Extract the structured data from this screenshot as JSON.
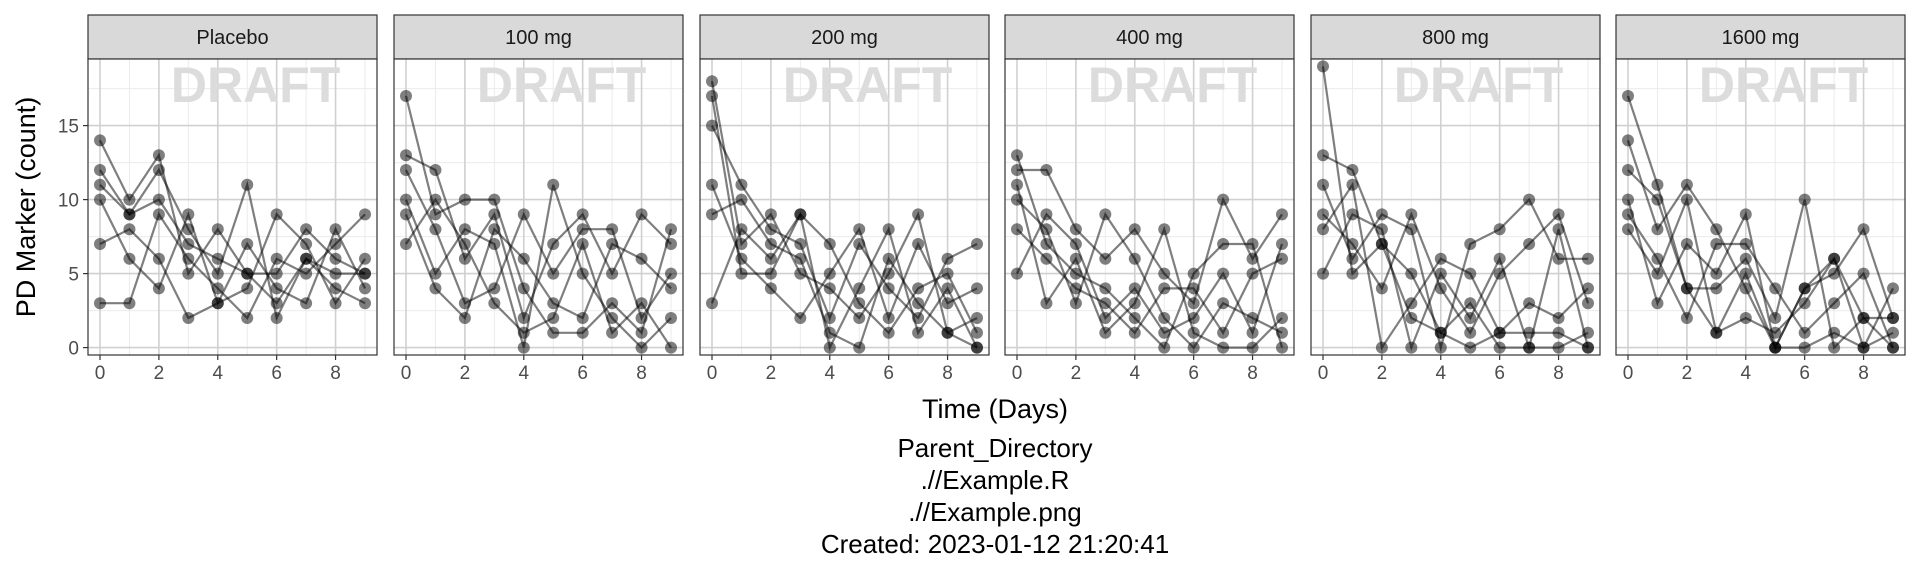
{
  "chart_data": {
    "type": "line",
    "facets": [
      "Placebo",
      "100 mg",
      "200 mg",
      "400 mg",
      "800 mg",
      "1600 mg"
    ],
    "xlabel": "Time (Days)",
    "ylabel": "PD Marker (count)",
    "xlim": [
      0,
      9
    ],
    "ylim": [
      -0.5,
      19.5
    ],
    "xticks": [
      0,
      2,
      4,
      6,
      8
    ],
    "yticks": [
      0,
      5,
      10,
      15
    ],
    "grid": true,
    "watermark": "DRAFT",
    "series": [
      {
        "facet": "Placebo",
        "x": [
          0,
          1,
          2,
          3,
          4,
          5,
          6,
          7,
          8,
          9
        ],
        "y": [
          14,
          10,
          13,
          5,
          8,
          5,
          3,
          6,
          5,
          5
        ]
      },
      {
        "facet": "Placebo",
        "x": [
          0,
          1,
          2,
          3,
          4,
          5,
          6,
          7,
          8,
          9
        ],
        "y": [
          12,
          9,
          10,
          7,
          6,
          5,
          5,
          8,
          6,
          5
        ]
      },
      {
        "facet": "Placebo",
        "x": [
          0,
          1,
          2,
          3,
          4,
          5,
          6,
          7,
          8,
          9
        ],
        "y": [
          11,
          9,
          12,
          8,
          5,
          11,
          2,
          6,
          4,
          3
        ]
      },
      {
        "facet": "Placebo",
        "x": [
          0,
          1,
          2,
          3,
          4,
          5,
          6,
          7,
          8,
          9
        ],
        "y": [
          10,
          6,
          4,
          9,
          3,
          4,
          9,
          7,
          3,
          6
        ]
      },
      {
        "facet": "Placebo",
        "x": [
          0,
          1,
          2,
          3,
          4,
          5,
          6,
          7,
          8,
          9
        ],
        "y": [
          7,
          8,
          6,
          2,
          3,
          7,
          4,
          3,
          8,
          4
        ]
      },
      {
        "facet": "Placebo",
        "x": [
          0,
          1,
          2,
          3,
          4,
          5,
          6,
          7,
          8,
          9
        ],
        "y": [
          3,
          3,
          9,
          6,
          4,
          2,
          6,
          5,
          7,
          9
        ]
      },
      {
        "facet": "100 mg",
        "x": [
          0,
          1,
          2,
          3,
          4,
          5,
          6,
          7,
          8,
          9
        ],
        "y": [
          17,
          9,
          10,
          10,
          4,
          1,
          1,
          3,
          1,
          8
        ]
      },
      {
        "facet": "100 mg",
        "x": [
          0,
          1,
          2,
          3,
          4,
          5,
          6,
          7,
          8,
          9
        ],
        "y": [
          13,
          12,
          6,
          9,
          2,
          7,
          9,
          5,
          9,
          7
        ]
      },
      {
        "facet": "100 mg",
        "x": [
          0,
          1,
          2,
          3,
          4,
          5,
          6,
          7,
          8,
          9
        ],
        "y": [
          12,
          8,
          3,
          4,
          9,
          5,
          8,
          8,
          2,
          5
        ]
      },
      {
        "facet": "100 mg",
        "x": [
          0,
          1,
          2,
          3,
          4,
          5,
          6,
          7,
          8,
          9
        ],
        "y": [
          10,
          5,
          8,
          7,
          0,
          11,
          5,
          2,
          0,
          2
        ]
      },
      {
        "facet": "100 mg",
        "x": [
          0,
          1,
          2,
          3,
          4,
          5,
          6,
          7,
          8,
          9
        ],
        "y": [
          9,
          4,
          2,
          8,
          6,
          3,
          2,
          7,
          6,
          4
        ]
      },
      {
        "facet": "100 mg",
        "x": [
          0,
          1,
          2,
          3,
          4,
          5,
          6,
          7,
          8,
          9
        ],
        "y": [
          7,
          10,
          7,
          3,
          1,
          2,
          7,
          1,
          3,
          0
        ]
      },
      {
        "facet": "200 mg",
        "x": [
          0,
          1,
          2,
          3,
          4,
          5,
          6,
          7,
          8,
          9
        ],
        "y": [
          18,
          7,
          9,
          5,
          4,
          2,
          5,
          9,
          1,
          0
        ]
      },
      {
        "facet": "200 mg",
        "x": [
          0,
          1,
          2,
          3,
          4,
          5,
          6,
          7,
          8,
          9
        ],
        "y": [
          17,
          5,
          5,
          9,
          7,
          3,
          1,
          4,
          5,
          1
        ]
      },
      {
        "facet": "200 mg",
        "x": [
          0,
          1,
          2,
          3,
          4,
          5,
          6,
          7,
          8,
          9
        ],
        "y": [
          15,
          11,
          8,
          7,
          2,
          7,
          4,
          2,
          6,
          7
        ]
      },
      {
        "facet": "200 mg",
        "x": [
          0,
          1,
          2,
          3,
          4,
          5,
          6,
          7,
          8,
          9
        ],
        "y": [
          11,
          6,
          4,
          2,
          5,
          8,
          2,
          7,
          3,
          4
        ]
      },
      {
        "facet": "200 mg",
        "x": [
          0,
          1,
          2,
          3,
          4,
          5,
          6,
          7,
          8,
          9
        ],
        "y": [
          9,
          10,
          7,
          6,
          1,
          0,
          6,
          3,
          1,
          2
        ]
      },
      {
        "facet": "200 mg",
        "x": [
          0,
          1,
          2,
          3,
          4,
          5,
          6,
          7,
          8,
          9
        ],
        "y": [
          3,
          8,
          6,
          9,
          0,
          4,
          8,
          1,
          4,
          0
        ]
      },
      {
        "facet": "400 mg",
        "x": [
          0,
          1,
          2,
          3,
          4,
          5,
          6,
          7,
          8,
          9
        ],
        "y": [
          13,
          7,
          5,
          4,
          2,
          0,
          5,
          7,
          7,
          0
        ]
      },
      {
        "facet": "400 mg",
        "x": [
          0,
          1,
          2,
          3,
          4,
          5,
          6,
          7,
          8,
          9
        ],
        "y": [
          12,
          12,
          8,
          6,
          8,
          5,
          3,
          10,
          6,
          9
        ]
      },
      {
        "facet": "400 mg",
        "x": [
          0,
          1,
          2,
          3,
          4,
          5,
          6,
          7,
          8,
          9
        ],
        "y": [
          11,
          3,
          6,
          1,
          3,
          8,
          1,
          0,
          0,
          2
        ]
      },
      {
        "facet": "400 mg",
        "x": [
          0,
          1,
          2,
          3,
          4,
          5,
          6,
          7,
          8,
          9
        ],
        "y": [
          10,
          8,
          3,
          9,
          6,
          2,
          0,
          3,
          2,
          1
        ]
      },
      {
        "facet": "400 mg",
        "x": [
          0,
          1,
          2,
          3,
          4,
          5,
          6,
          7,
          8,
          9
        ],
        "y": [
          8,
          6,
          4,
          3,
          1,
          4,
          4,
          1,
          5,
          6
        ]
      },
      {
        "facet": "400 mg",
        "x": [
          0,
          1,
          2,
          3,
          4,
          5,
          6,
          7,
          8,
          9
        ],
        "y": [
          5,
          9,
          7,
          2,
          4,
          1,
          2,
          5,
          1,
          7
        ]
      },
      {
        "facet": "800 mg",
        "x": [
          0,
          1,
          2,
          3,
          4,
          5,
          6,
          7,
          8,
          9
        ],
        "y": [
          19,
          5,
          7,
          2,
          1,
          0,
          1,
          1,
          1,
          0
        ]
      },
      {
        "facet": "800 mg",
        "x": [
          0,
          1,
          2,
          3,
          4,
          5,
          6,
          7,
          8,
          9
        ],
        "y": [
          13,
          12,
          7,
          5,
          1,
          3,
          0,
          0,
          0,
          1
        ]
      },
      {
        "facet": "800 mg",
        "x": [
          0,
          1,
          2,
          3,
          4,
          5,
          6,
          7,
          8,
          9
        ],
        "y": [
          11,
          6,
          9,
          8,
          0,
          7,
          8,
          10,
          6,
          6
        ]
      },
      {
        "facet": "800 mg",
        "x": [
          0,
          1,
          2,
          3,
          4,
          5,
          6,
          7,
          8,
          9
        ],
        "y": [
          9,
          7,
          4,
          9,
          4,
          1,
          5,
          7,
          9,
          3
        ]
      },
      {
        "facet": "800 mg",
        "x": [
          0,
          1,
          2,
          3,
          4,
          5,
          6,
          7,
          8,
          9
        ],
        "y": [
          8,
          11,
          0,
          3,
          6,
          5,
          1,
          3,
          2,
          4
        ]
      },
      {
        "facet": "800 mg",
        "x": [
          0,
          1,
          2,
          3,
          4,
          5,
          6,
          7,
          8,
          9
        ],
        "y": [
          5,
          9,
          8,
          0,
          5,
          2,
          6,
          0,
          8,
          0
        ]
      },
      {
        "facet": "1600 mg",
        "x": [
          0,
          1,
          2,
          3,
          4,
          5,
          6,
          7,
          8,
          9
        ],
        "y": [
          17,
          11,
          4,
          4,
          6,
          2,
          10,
          0,
          2,
          2
        ]
      },
      {
        "facet": "1600 mg",
        "x": [
          0,
          1,
          2,
          3,
          4,
          5,
          6,
          7,
          8,
          9
        ],
        "y": [
          14,
          8,
          11,
          8,
          4,
          0,
          0,
          1,
          0,
          1
        ]
      },
      {
        "facet": "1600 mg",
        "x": [
          0,
          1,
          2,
          3,
          4,
          5,
          6,
          7,
          8,
          9
        ],
        "y": [
          12,
          10,
          4,
          1,
          2,
          1,
          3,
          6,
          2,
          0
        ]
      },
      {
        "facet": "1600 mg",
        "x": [
          0,
          1,
          2,
          3,
          4,
          5,
          6,
          7,
          8,
          9
        ],
        "y": [
          10,
          3,
          7,
          5,
          9,
          0,
          4,
          5,
          8,
          2
        ]
      },
      {
        "facet": "1600 mg",
        "x": [
          0,
          1,
          2,
          3,
          4,
          5,
          6,
          7,
          8,
          9
        ],
        "y": [
          9,
          6,
          2,
          7,
          7,
          4,
          1,
          3,
          5,
          0
        ]
      },
      {
        "facet": "1600 mg",
        "x": [
          0,
          1,
          2,
          3,
          4,
          5,
          6,
          7,
          8,
          9
        ],
        "y": [
          8,
          5,
          10,
          1,
          5,
          0,
          4,
          6,
          0,
          4
        ]
      }
    ]
  },
  "caption": {
    "line1": "Parent_Directory",
    "line2": ".//Example.R",
    "line3": ".//Example.png",
    "line4": "Created: 2023-01-12 21:20:41"
  },
  "colors": {
    "strip_fill": "#d9d9d9",
    "panel_border": "#333333",
    "grid_major": "#d0d0d0",
    "grid_minor": "#ebebeb",
    "point": "#000000",
    "watermark": "#dcdcdc"
  }
}
